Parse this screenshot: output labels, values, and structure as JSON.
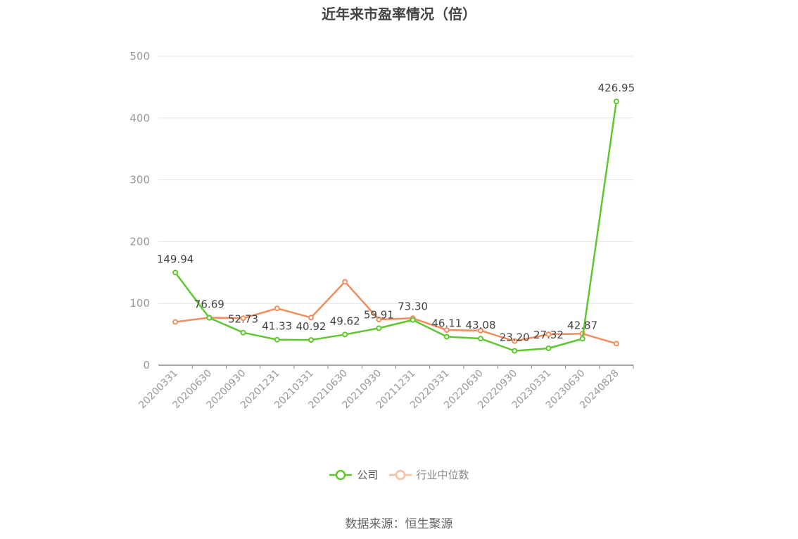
{
  "chart_data": {
    "type": "line",
    "title": "近年来市盈率情况（倍）",
    "categories": [
      "20200331",
      "20200630",
      "20200930",
      "20201231",
      "20210331",
      "20210630",
      "20210930",
      "20211231",
      "20220331",
      "20220630",
      "20220930",
      "20230331",
      "20230630",
      "20240828"
    ],
    "ylim": [
      0,
      500
    ],
    "yticks": [
      0,
      100,
      200,
      300,
      400,
      500
    ],
    "grid": true,
    "legend_position": "bottom",
    "series": [
      {
        "name": "公司",
        "color": "#5ec72e",
        "values": [
          149.94,
          76.69,
          52.73,
          41.33,
          40.92,
          49.62,
          59.91,
          73.3,
          46.11,
          43.08,
          23.2,
          27.32,
          42.87,
          426.95
        ],
        "labels": [
          "149.94",
          "76.69",
          "52.73",
          "41.33",
          "40.92",
          "49.62",
          "59.91",
          "73.30",
          "46.11",
          "43.08",
          "23.20",
          "27.32",
          "42.87",
          "426.95"
        ]
      },
      {
        "name": "行业中位数",
        "color": "#f28c5c",
        "values": [
          70,
          77,
          76,
          92,
          77,
          135,
          74,
          76,
          57,
          56,
          39,
          50,
          51,
          35
        ]
      }
    ]
  },
  "legend": {
    "company": "公司",
    "industry": "行业中位数"
  },
  "source": "数据来源：恒生聚源"
}
